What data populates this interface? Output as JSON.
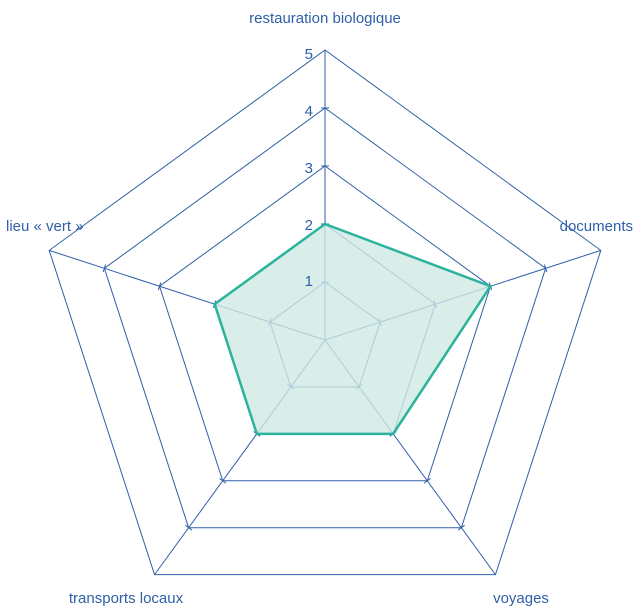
{
  "chart_data": {
    "type": "radar",
    "axes": [
      "restauration biologique",
      "documents",
      "voyages",
      "transports locaux",
      "lieu « vert »"
    ],
    "tick_labels": [
      "1",
      "2",
      "3",
      "4",
      "5"
    ],
    "range": [
      0,
      5
    ],
    "series": [
      {
        "values": [
          2,
          3,
          2,
          2,
          2
        ]
      }
    ],
    "colors": {
      "grid": "#2f5fa8",
      "series_line": "#2bb39b",
      "series_fill": "#cfe9e3",
      "text": "#2f5fa8"
    },
    "grid": true
  }
}
